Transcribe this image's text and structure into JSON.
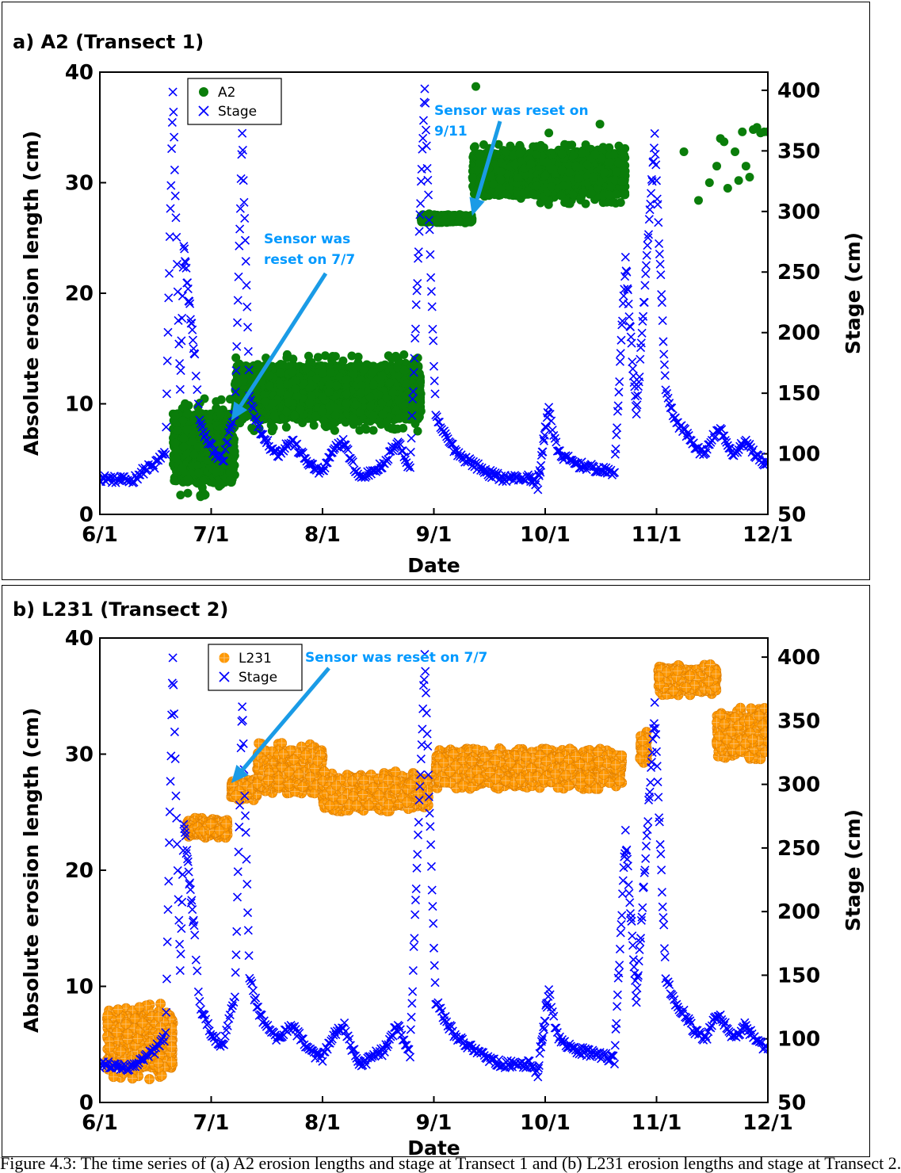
{
  "caption": "Figure 4.3: The time series of (a) A2 erosion lengths and stage at Transect 1 and (b) L231 erosion lengths and stage at Transect 2.",
  "chart_data": [
    {
      "panel_title": "a) A2 (Transect 1)",
      "type": "scatter",
      "xlabel": "Date",
      "ylabel": "Absolute erosion length (cm)",
      "y2label": "Stage (cm)",
      "x_ticks": [
        "6/1",
        "7/1",
        "8/1",
        "9/1",
        "10/1",
        "11/1",
        "12/1"
      ],
      "xlim": [
        "2017-06-01",
        "2017-12-01"
      ],
      "ylim": [
        0,
        40
      ],
      "y_ticks": [
        "0",
        "10",
        "20",
        "30",
        "40"
      ],
      "y2lim": [
        50,
        415
      ],
      "y2_ticks": [
        "50",
        "100",
        "150",
        "200",
        "250",
        "300",
        "350",
        "400"
      ],
      "grid": false,
      "legend_position": "top-left",
      "series": [
        {
          "name": "A2",
          "axis": "left",
          "marker": "filled-circle",
          "color": "#0a7d0a",
          "segments": [
            {
              "start": "2017-06-21",
              "end": "2017-07-08",
              "low": 1.5,
              "high": 10.5
            },
            {
              "start": "2017-07-08",
              "end": "2017-08-28",
              "low": 7.5,
              "high": 14.5
            },
            {
              "start": "2017-08-28",
              "end": "2017-09-11",
              "low": 26.3,
              "high": 27.2
            },
            {
              "start": "2017-09-11",
              "end": "2017-10-23",
              "low": 28.0,
              "high": 33.5
            }
          ],
          "points": [
            {
              "date": "2017-09-12",
              "value": 38.7
            },
            {
              "date": "2017-10-02",
              "value": 34.5
            },
            {
              "date": "2017-10-16",
              "value": 35.3
            },
            {
              "date": "2017-11-08",
              "value": 32.8
            },
            {
              "date": "2017-11-12",
              "value": 28.4
            },
            {
              "date": "2017-11-15",
              "value": 30.0
            },
            {
              "date": "2017-11-17",
              "value": 31.5
            },
            {
              "date": "2017-11-18",
              "value": 34.0
            },
            {
              "date": "2017-11-19",
              "value": 33.7
            },
            {
              "date": "2017-11-20",
              "value": 29.5
            },
            {
              "date": "2017-11-22",
              "value": 32.8
            },
            {
              "date": "2017-11-23",
              "value": 30.2
            },
            {
              "date": "2017-11-24",
              "value": 34.6
            },
            {
              "date": "2017-11-25",
              "value": 31.5
            },
            {
              "date": "2017-11-26",
              "value": 30.5
            },
            {
              "date": "2017-11-27",
              "value": 34.8
            },
            {
              "date": "2017-11-28",
              "value": 35.0
            },
            {
              "date": "2017-11-29",
              "value": 34.5
            },
            {
              "date": "2017-11-30",
              "value": 34.6
            },
            {
              "date": "2017-12-01",
              "value": 34.6
            }
          ]
        },
        {
          "name": "Stage",
          "axis": "right",
          "marker": "x",
          "color": "#0000ff",
          "values": [
            {
              "date": "2017-06-01",
              "value": 80
            },
            {
              "date": "2017-06-10",
              "value": 78
            },
            {
              "date": "2017-06-16",
              "value": 90
            },
            {
              "date": "2017-06-19",
              "value": 100
            },
            {
              "date": "2017-06-21",
              "value": 400
            },
            {
              "date": "2017-06-23",
              "value": 150
            },
            {
              "date": "2017-06-24",
              "value": 270
            },
            {
              "date": "2017-06-27",
              "value": 180
            },
            {
              "date": "2017-06-29",
              "value": 120
            },
            {
              "date": "2017-07-05",
              "value": 95
            },
            {
              "date": "2017-07-08",
              "value": 130
            },
            {
              "date": "2017-07-10",
              "value": 365
            },
            {
              "date": "2017-07-12",
              "value": 150
            },
            {
              "date": "2017-07-16",
              "value": 115
            },
            {
              "date": "2017-07-20",
              "value": 100
            },
            {
              "date": "2017-07-24",
              "value": 110
            },
            {
              "date": "2017-08-01",
              "value": 85
            },
            {
              "date": "2017-08-07",
              "value": 110
            },
            {
              "date": "2017-08-12",
              "value": 80
            },
            {
              "date": "2017-08-18",
              "value": 90
            },
            {
              "date": "2017-08-22",
              "value": 110
            },
            {
              "date": "2017-08-25",
              "value": 90
            },
            {
              "date": "2017-08-29",
              "value": 400
            },
            {
              "date": "2017-09-01",
              "value": 130
            },
            {
              "date": "2017-09-10",
              "value": 95
            },
            {
              "date": "2017-09-20",
              "value": 80
            },
            {
              "date": "2017-09-27",
              "value": 80
            },
            {
              "date": "2017-09-29",
              "value": 75
            },
            {
              "date": "2017-10-02",
              "value": 140
            },
            {
              "date": "2017-10-05",
              "value": 100
            },
            {
              "date": "2017-10-12",
              "value": 90
            },
            {
              "date": "2017-10-20",
              "value": 85
            },
            {
              "date": "2017-10-23",
              "value": 260
            },
            {
              "date": "2017-10-26",
              "value": 130
            },
            {
              "date": "2017-10-31",
              "value": 360
            },
            {
              "date": "2017-11-03",
              "value": 150
            },
            {
              "date": "2017-11-08",
              "value": 120
            },
            {
              "date": "2017-11-14",
              "value": 100
            },
            {
              "date": "2017-11-18",
              "value": 120
            },
            {
              "date": "2017-11-22",
              "value": 100
            },
            {
              "date": "2017-11-25",
              "value": 110
            },
            {
              "date": "2017-12-01",
              "value": 92
            }
          ]
        }
      ],
      "annotations": [
        {
          "lines": [
            "Sensor was",
            "reset on 7/7"
          ],
          "target_date": "2017-07-07",
          "target_value": 8.5
        },
        {
          "lines": [
            "Sensor was reset on",
            "9/11"
          ],
          "target_date": "2017-09-11",
          "target_value": 27.0
        }
      ]
    },
    {
      "panel_title": "b) L231 (Transect 2)",
      "type": "scatter",
      "xlabel": "Date",
      "ylabel": "Absolute erosion length (cm)",
      "y2label": "Stage (cm)",
      "x_ticks": [
        "6/1",
        "7/1",
        "8/1",
        "9/1",
        "10/1",
        "11/1",
        "12/1"
      ],
      "xlim": [
        "2017-06-01",
        "2017-12-01"
      ],
      "ylim": [
        0,
        40
      ],
      "y_ticks": [
        "0",
        "10",
        "20",
        "30",
        "40"
      ],
      "y2lim": [
        50,
        415
      ],
      "y2_ticks": [
        "50",
        "100",
        "150",
        "200",
        "250",
        "300",
        "350",
        "400"
      ],
      "grid": false,
      "legend_position": "top-left",
      "series": [
        {
          "name": "L231",
          "axis": "left",
          "marker": "circled-plus",
          "color": "#ff9900",
          "segments": [
            {
              "start": "2017-06-03",
              "end": "2017-06-21",
              "low": 2.0,
              "high": 8.5
            },
            {
              "start": "2017-06-25",
              "end": "2017-07-06",
              "low": 22.8,
              "high": 24.5
            },
            {
              "start": "2017-07-07",
              "end": "2017-07-14",
              "low": 26.0,
              "high": 27.8
            },
            {
              "start": "2017-07-14",
              "end": "2017-08-01",
              "low": 26.5,
              "high": 31.0
            },
            {
              "start": "2017-08-01",
              "end": "2017-08-30",
              "low": 25.0,
              "high": 28.5
            },
            {
              "start": "2017-09-01",
              "end": "2017-10-22",
              "low": 27.0,
              "high": 30.5
            },
            {
              "start": "2017-10-27",
              "end": "2017-10-29",
              "low": 29.0,
              "high": 32.0
            },
            {
              "start": "2017-11-01",
              "end": "2017-11-17",
              "low": 35.0,
              "high": 37.8
            },
            {
              "start": "2017-11-17",
              "end": "2017-12-01",
              "low": 29.5,
              "high": 34.0
            }
          ],
          "points": []
        },
        {
          "name": "Stage",
          "axis": "right",
          "marker": "x",
          "color": "#0000ff",
          "values": [
            {
              "date": "2017-06-01",
              "value": 80
            },
            {
              "date": "2017-06-10",
              "value": 78
            },
            {
              "date": "2017-06-16",
              "value": 90
            },
            {
              "date": "2017-06-19",
              "value": 100
            },
            {
              "date": "2017-06-21",
              "value": 400
            },
            {
              "date": "2017-06-23",
              "value": 150
            },
            {
              "date": "2017-06-24",
              "value": 270
            },
            {
              "date": "2017-06-27",
              "value": 180
            },
            {
              "date": "2017-06-29",
              "value": 120
            },
            {
              "date": "2017-07-05",
              "value": 95
            },
            {
              "date": "2017-07-08",
              "value": 130
            },
            {
              "date": "2017-07-10",
              "value": 365
            },
            {
              "date": "2017-07-12",
              "value": 150
            },
            {
              "date": "2017-07-16",
              "value": 115
            },
            {
              "date": "2017-07-20",
              "value": 100
            },
            {
              "date": "2017-07-24",
              "value": 110
            },
            {
              "date": "2017-08-01",
              "value": 85
            },
            {
              "date": "2017-08-07",
              "value": 110
            },
            {
              "date": "2017-08-12",
              "value": 80
            },
            {
              "date": "2017-08-18",
              "value": 90
            },
            {
              "date": "2017-08-22",
              "value": 110
            },
            {
              "date": "2017-08-25",
              "value": 90
            },
            {
              "date": "2017-08-29",
              "value": 400
            },
            {
              "date": "2017-09-01",
              "value": 130
            },
            {
              "date": "2017-09-10",
              "value": 95
            },
            {
              "date": "2017-09-20",
              "value": 80
            },
            {
              "date": "2017-09-27",
              "value": 80
            },
            {
              "date": "2017-09-29",
              "value": 75
            },
            {
              "date": "2017-10-02",
              "value": 140
            },
            {
              "date": "2017-10-05",
              "value": 100
            },
            {
              "date": "2017-10-12",
              "value": 90
            },
            {
              "date": "2017-10-20",
              "value": 85
            },
            {
              "date": "2017-10-23",
              "value": 260
            },
            {
              "date": "2017-10-26",
              "value": 130
            },
            {
              "date": "2017-10-31",
              "value": 360
            },
            {
              "date": "2017-11-03",
              "value": 150
            },
            {
              "date": "2017-11-08",
              "value": 120
            },
            {
              "date": "2017-11-14",
              "value": 100
            },
            {
              "date": "2017-11-18",
              "value": 120
            },
            {
              "date": "2017-11-22",
              "value": 100
            },
            {
              "date": "2017-11-25",
              "value": 110
            },
            {
              "date": "2017-12-01",
              "value": 92
            }
          ]
        }
      ],
      "annotations": [
        {
          "lines": [
            "Sensor was reset on 7/7"
          ],
          "target_date": "2017-07-07",
          "target_value": 27.5
        }
      ]
    }
  ]
}
